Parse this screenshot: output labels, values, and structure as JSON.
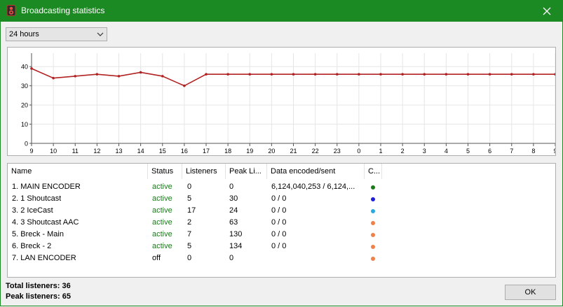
{
  "window": {
    "title": "Broadcasting statistics",
    "app_icon": "broadcast-speaker-icon",
    "close_icon": "close-icon"
  },
  "period": {
    "selected": "24 hours"
  },
  "chart_data": {
    "type": "line",
    "x": [
      "9",
      "10",
      "11",
      "12",
      "13",
      "14",
      "15",
      "16",
      "17",
      "18",
      "19",
      "20",
      "21",
      "22",
      "23",
      "0",
      "1",
      "2",
      "3",
      "4",
      "5",
      "6",
      "7",
      "8",
      "9"
    ],
    "series": [
      {
        "values": [
          39,
          34,
          35,
          36,
          35,
          37,
          35,
          30,
          36,
          36,
          36,
          36,
          36,
          36,
          36,
          36,
          36,
          36,
          36,
          36,
          36,
          36,
          36,
          36,
          36
        ],
        "color": "#b22222"
      }
    ],
    "yticks": [
      0,
      10,
      20,
      30,
      40
    ],
    "ylim": [
      0,
      47
    ],
    "grid": true,
    "title": "",
    "xlabel": "",
    "ylabel": ""
  },
  "table": {
    "headers": [
      "Name",
      "Status",
      "Listeners",
      "Peak Li...",
      "Data encoded/sent",
      "C..."
    ],
    "rows": [
      {
        "name": "1. MAIN ENCODER",
        "status": "active",
        "listeners": "0",
        "peak": "0",
        "data": "6,124,040,253 / 6,124,...",
        "color": "#1a7a1a"
      },
      {
        "name": "2. 1 Shoutcast",
        "status": "active",
        "listeners": "5",
        "peak": "30",
        "data": "0 / 0",
        "color": "#1f1fd6"
      },
      {
        "name": "3. 2 IceCast",
        "status": "active",
        "listeners": "17",
        "peak": "24",
        "data": "0 / 0",
        "color": "#2aa8e0"
      },
      {
        "name": "4. 3 Shoutcast AAC",
        "status": "active",
        "listeners": "2",
        "peak": "63",
        "data": "0 / 0",
        "color": "#f0804a"
      },
      {
        "name": "5. Breck - Main",
        "status": "active",
        "listeners": "7",
        "peak": "130",
        "data": "0 / 0",
        "color": "#f0804a"
      },
      {
        "name": "6. Breck - 2",
        "status": "active",
        "listeners": "5",
        "peak": "134",
        "data": "0 / 0",
        "color": "#f0804a"
      },
      {
        "name": "7. LAN ENCODER",
        "status": "off",
        "listeners": "0",
        "peak": "0",
        "data": "",
        "color": "#f0804a"
      }
    ]
  },
  "totals": {
    "total_listeners": "Total listeners:  36",
    "peak_listeners": "Peak listeners:  65"
  },
  "ok_label": "OK"
}
